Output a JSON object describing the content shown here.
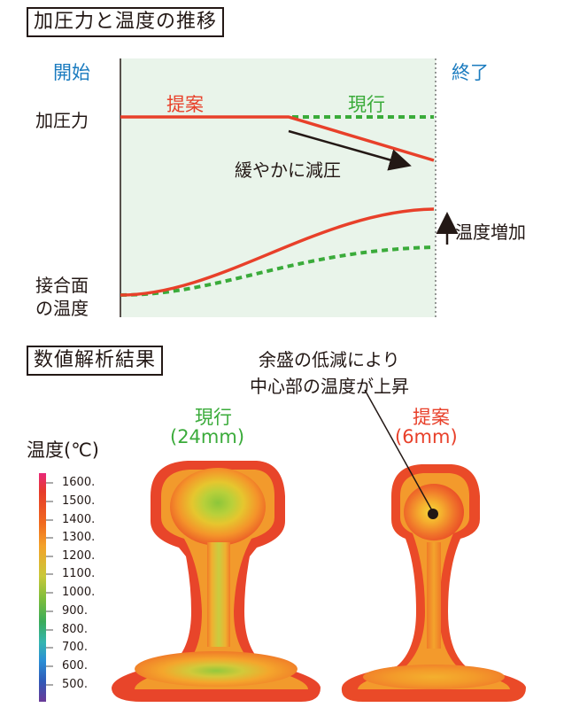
{
  "section1": {
    "title": "加圧力と温度の推移",
    "start_label": "開始",
    "end_label": "終了",
    "y_label_force": "加圧力",
    "y_label_temp_line1": "接合面",
    "y_label_temp_line2": "の温度",
    "legend_proposed": "提案",
    "legend_current": "現行",
    "annotation_force": "緩やかに減圧",
    "annotation_temp": "温度増加"
  },
  "section2": {
    "title": "数値解析結果",
    "callout_line1": "余盛の低減により",
    "callout_line2": "中心部の温度が上昇",
    "current_label": "現行",
    "current_sub": "(24mm)",
    "proposed_label": "提案",
    "proposed_sub": "(6mm)",
    "scale_title": "温度(℃)",
    "scale_ticks": [
      "1600.",
      "1500.",
      "1400.",
      "1300.",
      "1200.",
      "1100.",
      "1000.",
      "900.",
      "800.",
      "700.",
      "600.",
      "500."
    ]
  },
  "colors": {
    "proposed": "#e8402a",
    "current": "#3aab3a",
    "start_end": "#1a7bbf",
    "plot_bg": "#e9f4ea"
  }
}
